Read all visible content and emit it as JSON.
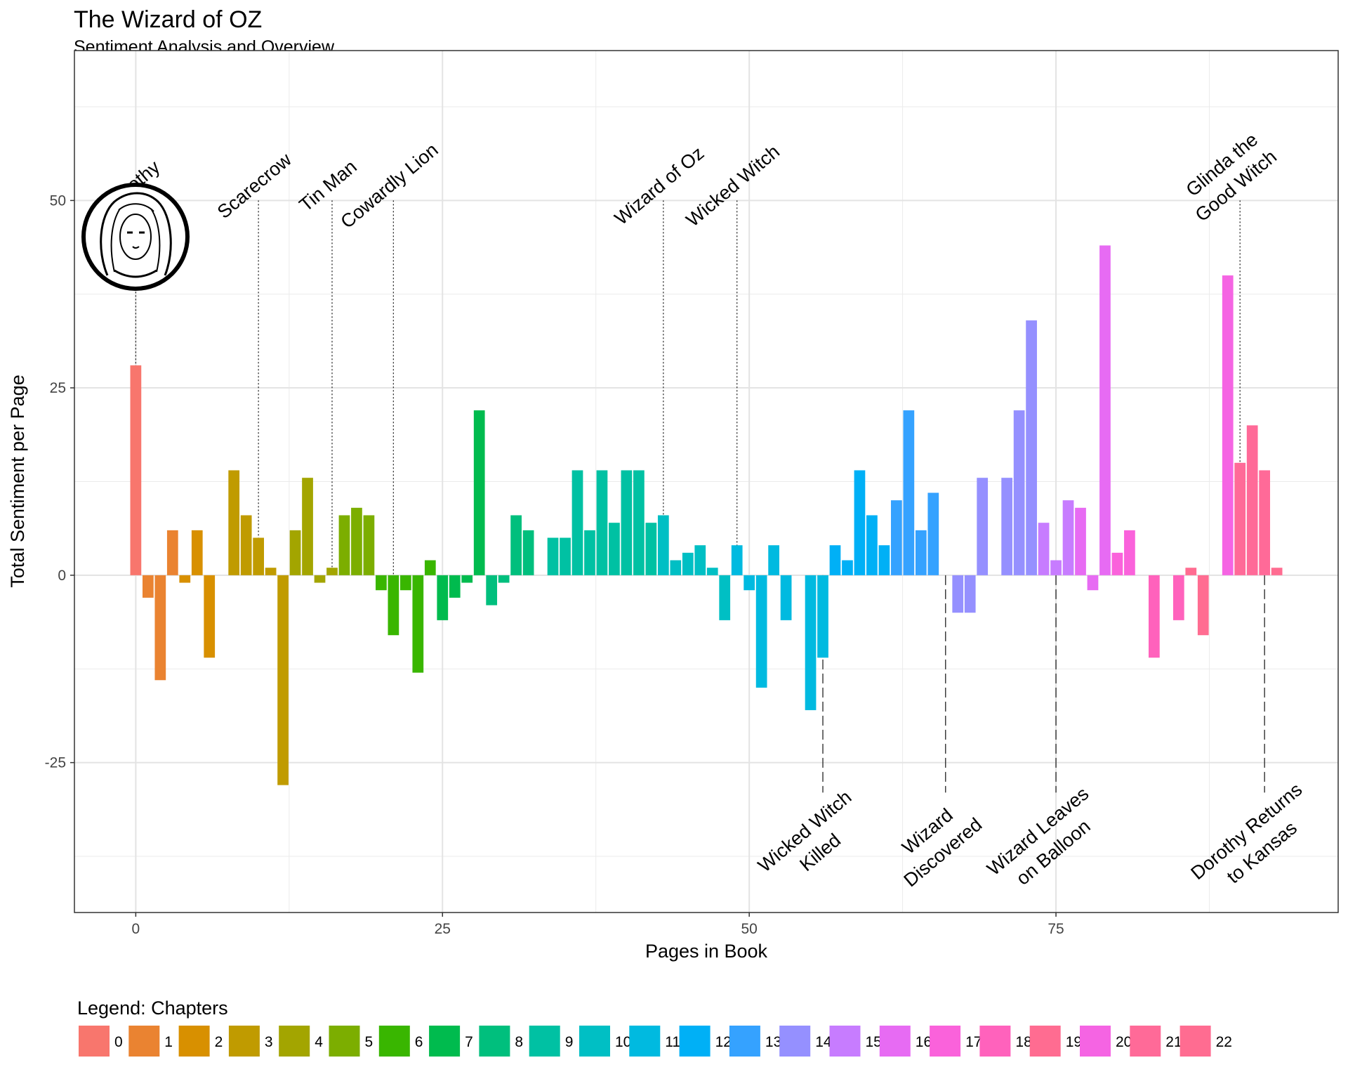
{
  "chart_data": {
    "type": "bar",
    "title": "The Wizard of OZ",
    "subtitle": "Sentiment Analysis and Overview",
    "xlabel": "Pages in Book",
    "ylabel": "Total Sentiment per Page",
    "xlim": [
      -5,
      98
    ],
    "ylim": [
      -45,
      70
    ],
    "x_ticks": [
      0,
      25,
      50,
      75
    ],
    "x_tick_labels": [
      "0",
      "25",
      "50",
      "75"
    ],
    "y_ticks": [
      -25,
      0,
      25,
      50
    ],
    "y_tick_labels": [
      "-25",
      "0",
      "25",
      "50"
    ],
    "grid": true,
    "legend": {
      "title": "Legend: Chapters",
      "position": "bottom",
      "entries": [
        "0",
        "1",
        "2",
        "3",
        "4",
        "5",
        "6",
        "7",
        "8",
        "9",
        "10",
        "11",
        "12",
        "13",
        "14",
        "15",
        "16",
        "17",
        "18",
        "19",
        "20",
        "21",
        "22"
      ],
      "colors": [
        "#F8766D",
        "#EA8331",
        "#D89000",
        "#C09B00",
        "#A3A500",
        "#7CAE00",
        "#39B600",
        "#00BB4E",
        "#00BF7D",
        "#00C1A3",
        "#00BFC4",
        "#00BAE0",
        "#00B0F6",
        "#35A2FF",
        "#9590FF",
        "#C77CFF",
        "#E76BF3",
        "#FA62DB",
        "#FF62BC",
        "#FF6C91",
        "#F564E3",
        "#FF6A98",
        "#FF6C91"
      ]
    },
    "bars": [
      {
        "x": 0,
        "y": 28,
        "chapter": 0
      },
      {
        "x": 1,
        "y": -3,
        "chapter": 1
      },
      {
        "x": 2,
        "y": -14,
        "chapter": 1
      },
      {
        "x": 3,
        "y": 6,
        "chapter": 1
      },
      {
        "x": 4,
        "y": -1,
        "chapter": 2
      },
      {
        "x": 5,
        "y": 6,
        "chapter": 2
      },
      {
        "x": 6,
        "y": -11,
        "chapter": 2
      },
      {
        "x": 8,
        "y": 14,
        "chapter": 3
      },
      {
        "x": 9,
        "y": 8,
        "chapter": 3
      },
      {
        "x": 10,
        "y": 5,
        "chapter": 3
      },
      {
        "x": 11,
        "y": 1,
        "chapter": 3
      },
      {
        "x": 12,
        "y": -28,
        "chapter": 3
      },
      {
        "x": 13,
        "y": 6,
        "chapter": 4
      },
      {
        "x": 14,
        "y": 13,
        "chapter": 4
      },
      {
        "x": 15,
        "y": -1,
        "chapter": 4
      },
      {
        "x": 16,
        "y": 1,
        "chapter": 4
      },
      {
        "x": 17,
        "y": 8,
        "chapter": 5
      },
      {
        "x": 18,
        "y": 9,
        "chapter": 5
      },
      {
        "x": 19,
        "y": 8,
        "chapter": 5
      },
      {
        "x": 20,
        "y": -2,
        "chapter": 6
      },
      {
        "x": 21,
        "y": -8,
        "chapter": 6
      },
      {
        "x": 22,
        "y": -2,
        "chapter": 6
      },
      {
        "x": 23,
        "y": -13,
        "chapter": 6
      },
      {
        "x": 24,
        "y": 2,
        "chapter": 6
      },
      {
        "x": 25,
        "y": -6,
        "chapter": 7
      },
      {
        "x": 26,
        "y": -3,
        "chapter": 7
      },
      {
        "x": 27,
        "y": -1,
        "chapter": 7
      },
      {
        "x": 28,
        "y": 22,
        "chapter": 7
      },
      {
        "x": 29,
        "y": -4,
        "chapter": 8
      },
      {
        "x": 30,
        "y": -1,
        "chapter": 8
      },
      {
        "x": 31,
        "y": 8,
        "chapter": 8
      },
      {
        "x": 32,
        "y": 6,
        "chapter": 8
      },
      {
        "x": 34,
        "y": 5,
        "chapter": 9
      },
      {
        "x": 35,
        "y": 5,
        "chapter": 9
      },
      {
        "x": 36,
        "y": 14,
        "chapter": 9
      },
      {
        "x": 37,
        "y": 6,
        "chapter": 9
      },
      {
        "x": 38,
        "y": 14,
        "chapter": 9
      },
      {
        "x": 39,
        "y": 7,
        "chapter": 9
      },
      {
        "x": 40,
        "y": 14,
        "chapter": 9
      },
      {
        "x": 41,
        "y": 14,
        "chapter": 9
      },
      {
        "x": 42,
        "y": 7,
        "chapter": 9
      },
      {
        "x": 43,
        "y": 8,
        "chapter": 10
      },
      {
        "x": 44,
        "y": 2,
        "chapter": 10
      },
      {
        "x": 45,
        "y": 3,
        "chapter": 10
      },
      {
        "x": 46,
        "y": 4,
        "chapter": 10
      },
      {
        "x": 47,
        "y": 1,
        "chapter": 10
      },
      {
        "x": 48,
        "y": -6,
        "chapter": 10
      },
      {
        "x": 49,
        "y": 4,
        "chapter": 11
      },
      {
        "x": 50,
        "y": -2,
        "chapter": 11
      },
      {
        "x": 51,
        "y": -15,
        "chapter": 11
      },
      {
        "x": 52,
        "y": 4,
        "chapter": 11
      },
      {
        "x": 53,
        "y": -6,
        "chapter": 11
      },
      {
        "x": 55,
        "y": -18,
        "chapter": 11
      },
      {
        "x": 56,
        "y": -11,
        "chapter": 11
      },
      {
        "x": 57,
        "y": 4,
        "chapter": 12
      },
      {
        "x": 58,
        "y": 2,
        "chapter": 12
      },
      {
        "x": 59,
        "y": 14,
        "chapter": 12
      },
      {
        "x": 60,
        "y": 8,
        "chapter": 12
      },
      {
        "x": 61,
        "y": 4,
        "chapter": 12
      },
      {
        "x": 62,
        "y": 10,
        "chapter": 13
      },
      {
        "x": 63,
        "y": 22,
        "chapter": 13
      },
      {
        "x": 64,
        "y": 6,
        "chapter": 13
      },
      {
        "x": 65,
        "y": 11,
        "chapter": 13
      },
      {
        "x": 67,
        "y": -5,
        "chapter": 14
      },
      {
        "x": 68,
        "y": -5,
        "chapter": 14
      },
      {
        "x": 69,
        "y": 13,
        "chapter": 14
      },
      {
        "x": 71,
        "y": 13,
        "chapter": 14
      },
      {
        "x": 72,
        "y": 22,
        "chapter": 14
      },
      {
        "x": 73,
        "y": 34,
        "chapter": 14
      },
      {
        "x": 74,
        "y": 7,
        "chapter": 15
      },
      {
        "x": 75,
        "y": 2,
        "chapter": 15
      },
      {
        "x": 76,
        "y": 10,
        "chapter": 15
      },
      {
        "x": 77,
        "y": 9,
        "chapter": 16
      },
      {
        "x": 78,
        "y": -2,
        "chapter": 16
      },
      {
        "x": 79,
        "y": 44,
        "chapter": 16
      },
      {
        "x": 80,
        "y": 3,
        "chapter": 17
      },
      {
        "x": 81,
        "y": 6,
        "chapter": 17
      },
      {
        "x": 83,
        "y": -11,
        "chapter": 18
      },
      {
        "x": 85,
        "y": -6,
        "chapter": 18
      },
      {
        "x": 86,
        "y": 1,
        "chapter": 19
      },
      {
        "x": 87,
        "y": -8,
        "chapter": 19
      },
      {
        "x": 89,
        "y": 40,
        "chapter": 20
      },
      {
        "x": 90,
        "y": 15,
        "chapter": 21
      },
      {
        "x": 91,
        "y": 20,
        "chapter": 21
      },
      {
        "x": 92,
        "y": 14,
        "chapter": 21
      },
      {
        "x": 93,
        "y": 1,
        "chapter": 22
      }
    ],
    "annotations_top": [
      {
        "x": 0,
        "label_lines": [
          "Dorothy"
        ]
      },
      {
        "x": 10,
        "label_lines": [
          "Scarecrow"
        ]
      },
      {
        "x": 16,
        "label_lines": [
          "Tin Man"
        ]
      },
      {
        "x": 21,
        "label_lines": [
          "Cowardly Lion"
        ]
      },
      {
        "x": 43,
        "label_lines": [
          "Wizard of Oz"
        ]
      },
      {
        "x": 49,
        "label_lines": [
          "Wicked Witch"
        ]
      },
      {
        "x": 90,
        "label_lines": [
          "Glinda the",
          "Good Witch"
        ]
      }
    ],
    "annotations_bottom": [
      {
        "x": 56,
        "label_lines": [
          "Wicked Witch",
          "Killed"
        ]
      },
      {
        "x": 66,
        "label_lines": [
          "Wizard",
          "Discovered"
        ]
      },
      {
        "x": 75,
        "label_lines": [
          "Wizard Leaves",
          "on Balloon"
        ]
      },
      {
        "x": 92,
        "label_lines": [
          "Dorothy Returns",
          "to Kansas"
        ]
      }
    ]
  }
}
